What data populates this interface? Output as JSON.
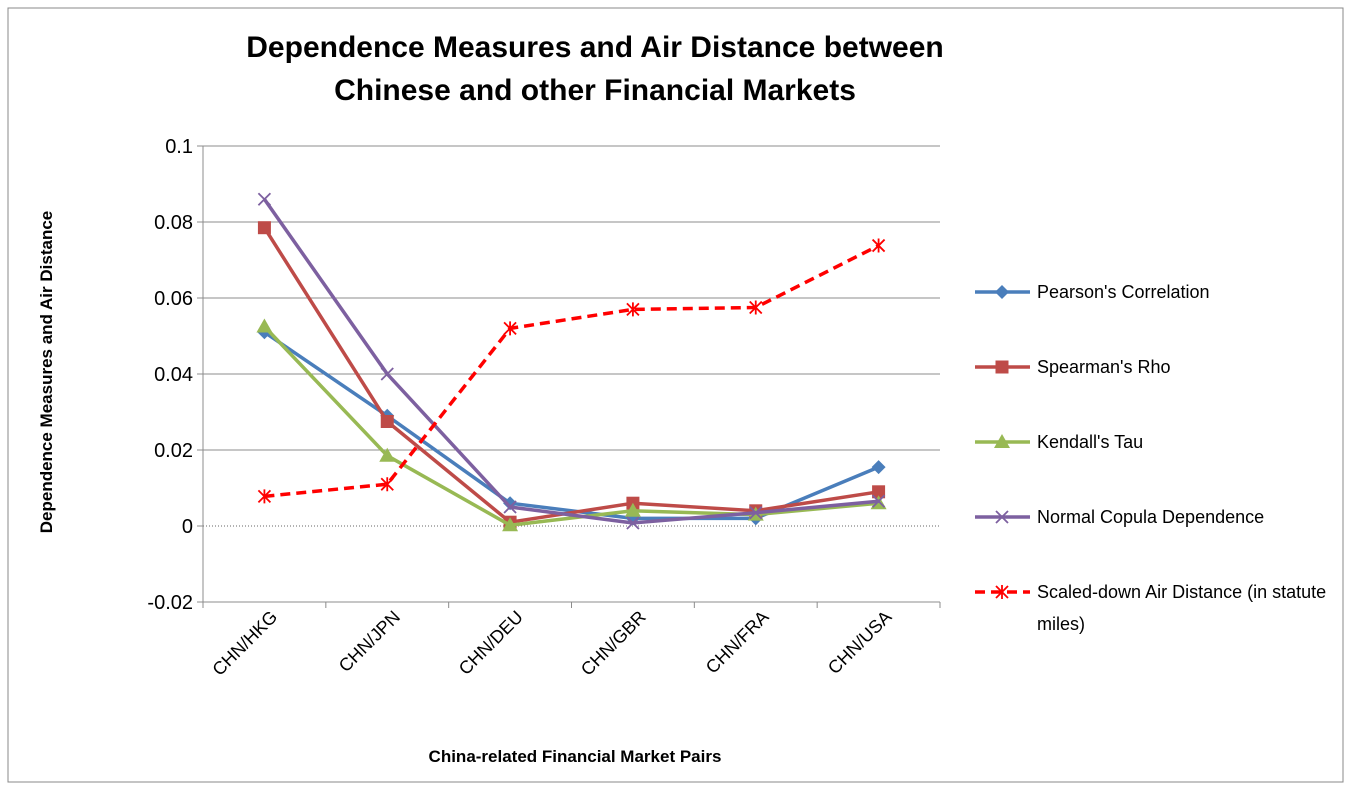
{
  "chart_data": {
    "type": "line",
    "title": "Dependence Measures and Air Distance between Chinese and other Financial Markets",
    "x_label": "China-related Financial Market Pairs",
    "y_label": "Dependence Measures and Air Distance",
    "categories": [
      "CHN/HKG",
      "CHN/JPN",
      "CHN/DEU",
      "CHN/GBR",
      "CHN/FRA",
      "CHN/USA"
    ],
    "ylim": [
      -0.02,
      0.1
    ],
    "yticks": [
      -0.02,
      0,
      0.02,
      0.04,
      0.06,
      0.08,
      0.1
    ],
    "grid": true,
    "legend": "right",
    "series": [
      {
        "name": "Pearson's Correlation",
        "color": "#4a7ebb",
        "marker": "diamond",
        "values": [
          0.051,
          0.029,
          0.006,
          0.002,
          0.002,
          0.0155
        ]
      },
      {
        "name": "Spearman's Rho",
        "color": "#be4b48",
        "marker": "square",
        "values": [
          0.0785,
          0.0275,
          0.001,
          0.006,
          0.004,
          0.009
        ]
      },
      {
        "name": "Kendall's Tau",
        "color": "#98b954",
        "marker": "triangle",
        "values": [
          0.0525,
          0.0185,
          0.0002,
          0.004,
          0.003,
          0.006
        ]
      },
      {
        "name": "Normal Copula Dependence",
        "color": "#7d60a0",
        "marker": "x",
        "values": [
          0.086,
          0.04,
          0.005,
          0.0008,
          0.0035,
          0.0065
        ]
      },
      {
        "name": "Scaled-down Air Distance (in statute miles)",
        "color": "#ff0000",
        "marker": "star",
        "dashed": true,
        "values": [
          0.0078,
          0.011,
          0.052,
          0.057,
          0.0575,
          0.0738
        ]
      }
    ]
  }
}
